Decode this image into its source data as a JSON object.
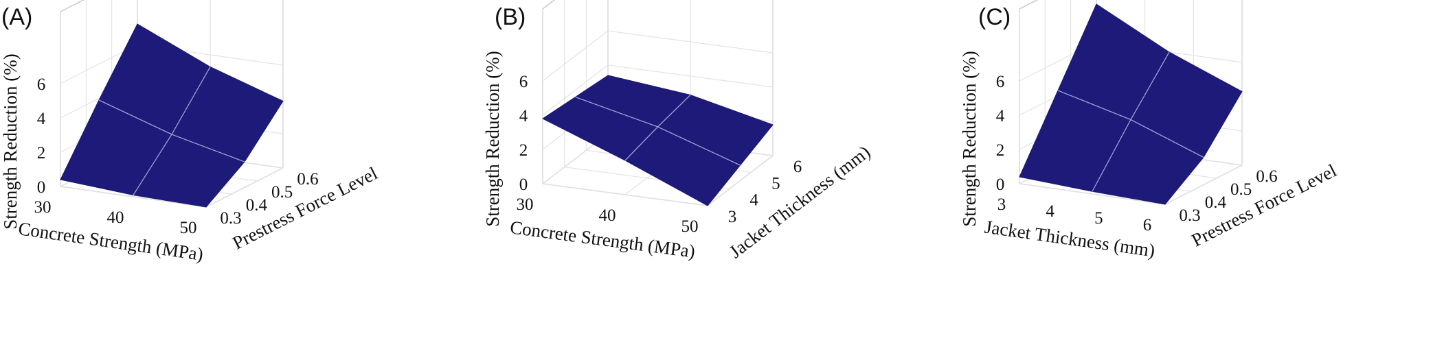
{
  "colors": {
    "surface": "#1d1a7a",
    "mesh": "#9aa2d6",
    "box": "#c8c8c8",
    "grid": "#e3e3e3"
  },
  "chart_data": [
    {
      "type": "surface",
      "panel_label": "(A)",
      "xlabel": "Concrete Strength (MPa)",
      "ylabel": "Prestress Force Level",
      "zlabel": "Strength Reduction (%)",
      "x_ticks": [
        "30",
        "40",
        "50"
      ],
      "y_ticks": [
        "0.3",
        "0.4",
        "0.5",
        "0.6"
      ],
      "z_ticks": [
        "0",
        "2",
        "4",
        "6"
      ],
      "xlim": [
        30,
        50
      ],
      "ylim": [
        0.3,
        0.6
      ],
      "zlim": [
        0,
        7
      ],
      "grid": true,
      "x": [
        30,
        40,
        50
      ],
      "y": [
        0.3,
        0.45,
        0.6
      ],
      "z": [
        [
          0.4,
          3.9,
          7.2
        ],
        [
          0.1,
          2.5,
          5.3
        ],
        [
          0.0,
          1.5,
          3.9
        ]
      ]
    },
    {
      "type": "surface",
      "panel_label": "(B)",
      "xlabel": "Concrete Strength (MPa)",
      "ylabel": "Jacket Thickness (mm)",
      "zlabel": "Strength Reduction (%)",
      "x_ticks": [
        "30",
        "40",
        "50"
      ],
      "y_ticks": [
        "3",
        "4",
        "5",
        "6"
      ],
      "z_ticks": [
        "0",
        "2",
        "4",
        "6"
      ],
      "xlim": [
        30,
        50
      ],
      "ylim": [
        3,
        6
      ],
      "zlim": [
        0,
        7
      ],
      "grid": true,
      "x": [
        30,
        40,
        50
      ],
      "y": [
        3,
        4.5,
        6
      ],
      "z": [
        [
          3.8,
          3.6,
          3.4
        ],
        [
          2.0,
          2.5,
          2.9
        ],
        [
          0.0,
          0.9,
          1.8
        ]
      ]
    },
    {
      "type": "surface",
      "panel_label": "(C)",
      "xlabel": "Jacket Thickness (mm)",
      "ylabel": "Prestress Force Level",
      "zlabel": "Strength Reduction (%)",
      "x_ticks": [
        "3",
        "4",
        "5",
        "6"
      ],
      "y_ticks": [
        "0.3",
        "0.4",
        "0.5",
        "0.6"
      ],
      "z_ticks": [
        "0",
        "2",
        "4",
        "6"
      ],
      "xlim": [
        3,
        6
      ],
      "ylim": [
        0.3,
        0.6
      ],
      "zlim": [
        0,
        7
      ],
      "grid": true,
      "x": [
        3,
        4.5,
        6
      ],
      "y": [
        0.3,
        0.45,
        0.6
      ],
      "z": [
        [
          0.4,
          4.3,
          8.2
        ],
        [
          0.15,
          3.2,
          6.0
        ],
        [
          0.0,
          1.6,
          4.3
        ]
      ]
    }
  ]
}
